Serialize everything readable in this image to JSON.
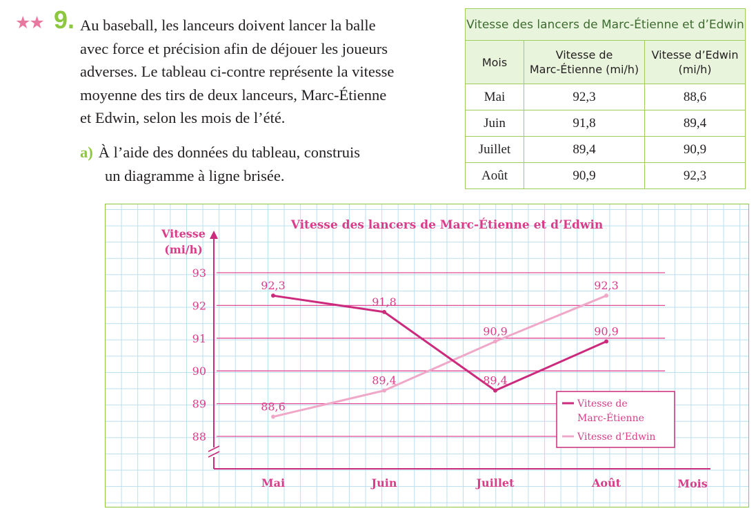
{
  "exercise": {
    "stars": "★★",
    "number": "9.",
    "statement": "Au baseball, les lanceurs doivent lancer la balle avec force et précision afin de déjouer les joueurs adverses. Le tableau ci-contre représente la vitesse moyenne des tirs de deux lanceurs, Marc-Étienne et Edwin, selon les mois de l’été.",
    "statement_lines": [
      "Au baseball, les lanceurs doivent lancer la balle",
      "avec force et précision afin de déjouer les joueurs",
      "adverses. Le tableau ci-contre représente la vitesse",
      "moyenne des tirs de deux lanceurs, Marc-Étienne",
      "et Edwin, selon les mois de l’été."
    ],
    "sub_label": "a)",
    "sub_line1": "À l’aide des données du tableau, construis",
    "sub_line2": "un diagramme à ligne brisée."
  },
  "table": {
    "title": "Vitesse des lancers de Marc-Étienne et d’Edwin",
    "col1": "Mois",
    "col2_line1": "Vitesse de",
    "col2_line2": "Marc-Étienne (mi/h)",
    "col3_line1": "Vitesse d’Edwin",
    "col3_line2": "(mi/h)",
    "rows": [
      {
        "mois": "Mai",
        "marc": "92,3",
        "edwin": "88,6"
      },
      {
        "mois": "Juin",
        "marc": "91,8",
        "edwin": "89,4"
      },
      {
        "mois": "Juillet",
        "marc": "89,4",
        "edwin": "90,9"
      },
      {
        "mois": "Août",
        "marc": "90,9",
        "edwin": "92,3"
      }
    ]
  },
  "colors": {
    "marc": "#cc2a7c",
    "edwin": "#f0a8c8",
    "text_pink": "#d93c88",
    "grid_blue": "#b9dfee",
    "green": "#8dc63f"
  },
  "chart_data": {
    "type": "line",
    "title": "Vitesse des lancers de Marc-Étienne et d’Edwin",
    "ylabel_line1": "Vitesse",
    "ylabel_line2": "(mi/h)",
    "xlabel": "Mois",
    "categories": [
      "Mai",
      "Juin",
      "Juillet",
      "Août"
    ],
    "yticks": [
      "93",
      "92",
      "91",
      "90",
      "89",
      "88"
    ],
    "ylim": [
      87,
      93
    ],
    "axis_break": true,
    "grid": true,
    "legend": "bottom-right",
    "series": [
      {
        "name_line1": "Vitesse de",
        "name_line2": "Marc-Étienne",
        "values": [
          92.3,
          91.8,
          89.4,
          90.9
        ],
        "labels": [
          "92,3",
          "91,8",
          "89,4",
          "90,9"
        ],
        "color": "#cc2a7c"
      },
      {
        "name_line1": "Vitesse d’Edwin",
        "name_line2": "",
        "values": [
          88.6,
          89.4,
          90.9,
          92.3
        ],
        "labels": [
          "88,6",
          "89,4",
          "90,9",
          "92,3"
        ],
        "color": "#f0a8c8"
      }
    ]
  }
}
